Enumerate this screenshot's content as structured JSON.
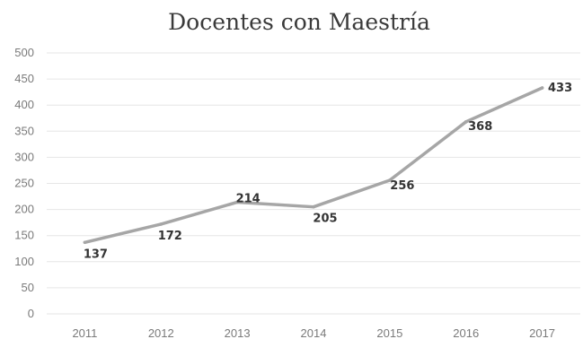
{
  "chart_data": {
    "type": "line",
    "title": "Docentes con Maestría",
    "xlabel": "",
    "ylabel": "",
    "categories": [
      "2011",
      "2012",
      "2013",
      "2014",
      "2015",
      "2016",
      "2017"
    ],
    "series": [
      {
        "values": [
          137,
          172,
          214,
          205,
          256,
          368,
          433
        ]
      }
    ],
    "ylim": [
      0,
      500
    ],
    "yticks": [
      0,
      50,
      100,
      150,
      200,
      250,
      300,
      350,
      400,
      450,
      500
    ],
    "grid": true,
    "legend": "none",
    "colors": {
      "line": "#a6a6a6",
      "grid": "#e6e6e6",
      "text": "#7a7a7a"
    }
  }
}
